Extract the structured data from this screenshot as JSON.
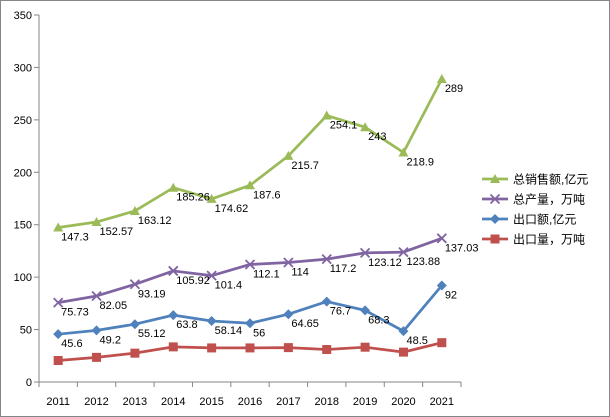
{
  "chart_data": {
    "type": "line",
    "categories": [
      "2011",
      "2012",
      "2013",
      "2014",
      "2015",
      "2016",
      "2017",
      "2018",
      "2019",
      "2020",
      "2021"
    ],
    "ylim": [
      0,
      350
    ],
    "yticks": [
      0,
      50,
      100,
      150,
      200,
      250,
      300,
      350
    ],
    "grid": false,
    "legend_position": "right",
    "series": [
      {
        "name": "总销售额,亿元",
        "color": "#9BBB59",
        "marker": "triangle",
        "values": [
          147.3,
          152.57,
          163.12,
          185.26,
          174.62,
          187.6,
          215.7,
          254.1,
          243,
          218.9,
          289
        ],
        "labels": [
          "147.3",
          "152.57",
          "163.12",
          "185.26",
          "174.62",
          "187.6",
          "215.7",
          "254.1",
          "243",
          "218.9",
          "289"
        ]
      },
      {
        "name": "总产量，万吨",
        "color": "#8064A2",
        "marker": "x",
        "values": [
          75.73,
          82.05,
          93.19,
          105.92,
          101.4,
          112.1,
          114,
          117.2,
          123.12,
          123.88,
          137.03
        ],
        "labels": [
          "75.73",
          "82.05",
          "93.19",
          "105.92",
          "101.4",
          "112.1",
          "114",
          "117.2",
          "123.12",
          "123.88",
          "137.03"
        ]
      },
      {
        "name": "出口额,亿元",
        "color": "#4F81BD",
        "marker": "diamond",
        "values": [
          45.6,
          49.2,
          55.12,
          63.8,
          58.14,
          56,
          64.65,
          76.7,
          68.3,
          48.5,
          92
        ],
        "labels": [
          "45.6",
          "49.2",
          "55.12",
          "63.8",
          "58.14",
          "56",
          "64.65",
          "76.7",
          "68.3",
          "48.5",
          "92"
        ]
      },
      {
        "name": "出口量，万吨",
        "color": "#C0504D",
        "marker": "square",
        "values": [
          20.5,
          23.5,
          27.5,
          33.5,
          32.5,
          32.5,
          32.8,
          31,
          33.2,
          28.5,
          37.5
        ],
        "labels": []
      }
    ]
  }
}
